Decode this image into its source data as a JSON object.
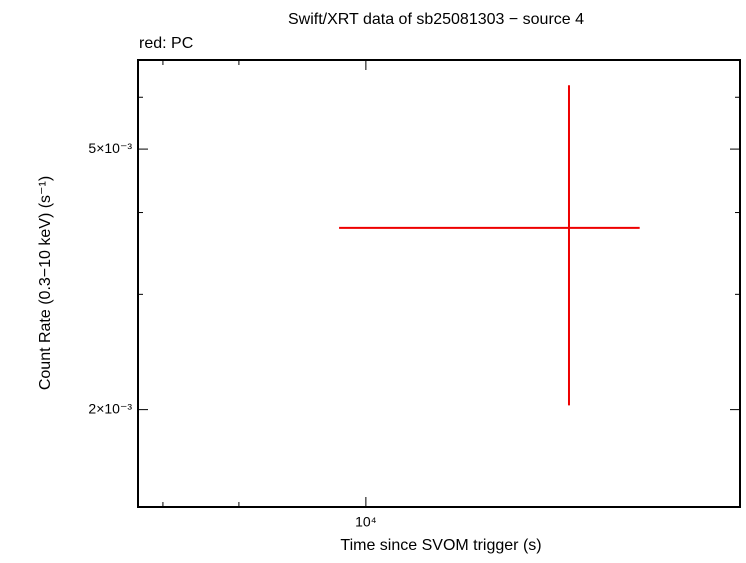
{
  "chart_data": {
    "type": "errorbar",
    "title": "Swift/XRT data of sb25081303 − source 4",
    "legend_text": "red: PC",
    "x_label": "Time since SVOM trigger (s)",
    "y_label": "Count Rate (0.3−10 keV) (s⁻¹)",
    "xscale": "log",
    "yscale": "log",
    "xlim": [
      6700,
      19300
    ],
    "ylim": [
      0.00142,
      0.00684
    ],
    "xticks": [
      {
        "value": 10000,
        "label": "10⁴"
      }
    ],
    "xminor": [
      7000,
      8000
    ],
    "yticks": [
      {
        "value": 0.002,
        "label": "2×10⁻³"
      },
      {
        "value": 0.005,
        "label": "5×10⁻³"
      }
    ],
    "yminor": [
      0.003,
      0.004,
      0.006
    ],
    "series": [
      {
        "name": "PC",
        "color": "#ee0000",
        "x": [
          14290
        ],
        "x_low": [
          9540
        ],
        "x_high": [
          16180
        ],
        "values": [
          0.00379
        ],
        "y_low": [
          0.00203
        ],
        "y_high": [
          0.00626
        ]
      }
    ]
  }
}
